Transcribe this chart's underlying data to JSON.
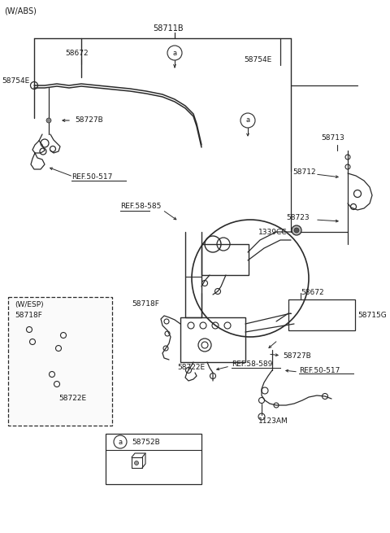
{
  "bg_color": "#ffffff",
  "line_color": "#2a2a2a",
  "text_color": "#1a1a1a",
  "labels": {
    "wabs": "(W/ABS)",
    "wesp": "(W/ESP)",
    "p58711B": "58711B",
    "p58672_top": "58672",
    "p58754E_top": "58754E",
    "p58754E_right": "58754E",
    "p58727B_top": "58727B",
    "ref50517_top": "REF.50-517",
    "p58713": "58713",
    "p58712": "58712",
    "p58723": "58723",
    "p1339CC": "1339CC",
    "ref58585": "REF.58-585",
    "p58718F_box": "58718F",
    "p58722E_box": "58722E",
    "p58718F_main": "58718F",
    "p58722E_main": "58722E",
    "ref58589": "REF.58-589",
    "p58672_right": "58672",
    "p58715G": "58715G",
    "p58727B_right": "58727B",
    "ref50517_right": "REF.50-517",
    "p1123AM": "1123AM",
    "p58752B": "58752B",
    "a_symbol": "a"
  },
  "figsize": [
    4.8,
    6.55
  ],
  "dpi": 100
}
